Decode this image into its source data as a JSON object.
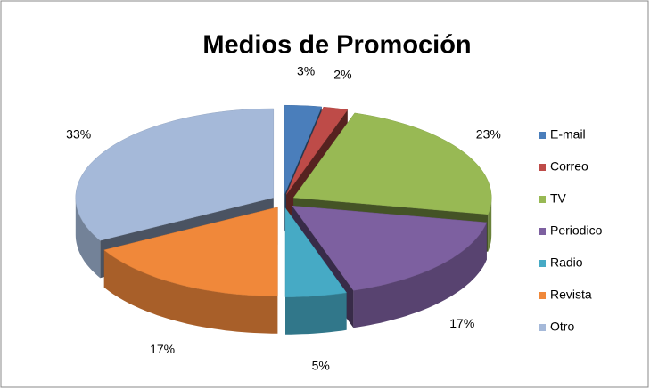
{
  "chart_data": {
    "type": "pie",
    "title": "Medios de Promoción",
    "categories": [
      "E-mail",
      "Correo",
      "TV",
      "Periodico",
      "Radio",
      "Revista",
      "Otro"
    ],
    "values": [
      3,
      2,
      23,
      17,
      5,
      17,
      33
    ],
    "value_labels": [
      "3%",
      "2%",
      "23%",
      "17%",
      "5%",
      "17%",
      "33%"
    ],
    "colors": [
      "#4a7ebb",
      "#be4b48",
      "#98b954",
      "#7d60a0",
      "#46aac5",
      "#f0883a",
      "#a5b9d9"
    ],
    "legend": "right",
    "style": "3d-exploded"
  }
}
